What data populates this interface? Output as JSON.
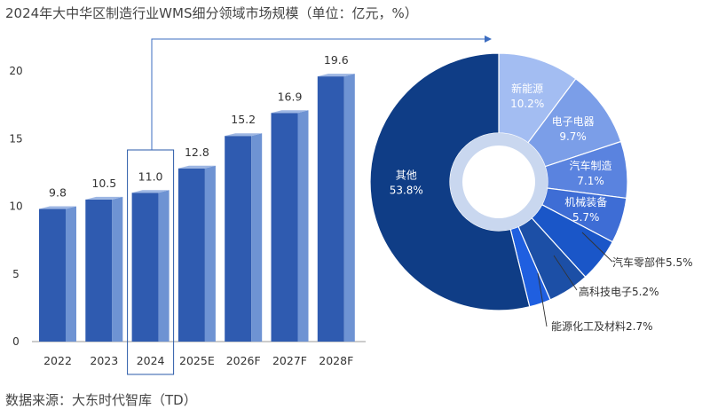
{
  "title": "2024年大中华区制造行业WMS细分领域市场规模（单位：亿元，%）",
  "source": "数据来源：大东时代智库（TD）",
  "colors": {
    "bar_front": "#2f5bb0",
    "bar_side": "#6e93d3",
    "bar_top": "#9db6e3",
    "axis": "#999999",
    "highlight": "#2a5aa8",
    "connector": "#3b6cc0",
    "donut_ring": "#c9d7ef"
  },
  "chart_data": [
    {
      "type": "bar",
      "title": "",
      "categories": [
        "2022",
        "2023",
        "2024",
        "2025E",
        "2026F",
        "2027F",
        "2028F"
      ],
      "values": [
        9.8,
        10.5,
        11.0,
        12.8,
        15.2,
        16.9,
        19.6
      ],
      "value_labels": [
        "9.8",
        "10.5",
        "11.0",
        "12.8",
        "15.2",
        "16.9",
        "19.6"
      ],
      "y_ticks": [
        "0",
        "5",
        "10",
        "15",
        "20"
      ],
      "ylim": [
        0,
        20
      ],
      "highlight": "2024",
      "grid": false
    },
    {
      "type": "pie",
      "title": "",
      "slices": [
        {
          "name": "新能源",
          "value": 10.2,
          "label": "10.2%",
          "color": "#a3bdf2",
          "text_color": "#ffffff"
        },
        {
          "name": "电子电器",
          "value": 9.7,
          "label": "9.7%",
          "color": "#7b9ee8",
          "text_color": "#ffffff"
        },
        {
          "name": "汽车制造",
          "value": 7.1,
          "label": "7.1%",
          "color": "#5a83df",
          "text_color": "#ffffff"
        },
        {
          "name": "机械装备",
          "value": 5.7,
          "label": "5.7%",
          "color": "#3e6dd5",
          "text_color": "#ffffff"
        },
        {
          "name": "汽车零部件",
          "value": 5.5,
          "label": "5.5%",
          "color": "#1a56c8",
          "text_color": "#333333"
        },
        {
          "name": "高科技电子",
          "value": 5.2,
          "label": "5.2%",
          "color": "#1c4fa6",
          "text_color": "#333333"
        },
        {
          "name": "能源化工及材料",
          "value": 2.7,
          "label": "2.7%",
          "color": "#1f5fe0",
          "text_color": "#333333"
        },
        {
          "name": "其他",
          "value": 53.8,
          "label": "53.8%",
          "color": "#0f3d86",
          "text_color": "#ffffff"
        }
      ]
    }
  ]
}
